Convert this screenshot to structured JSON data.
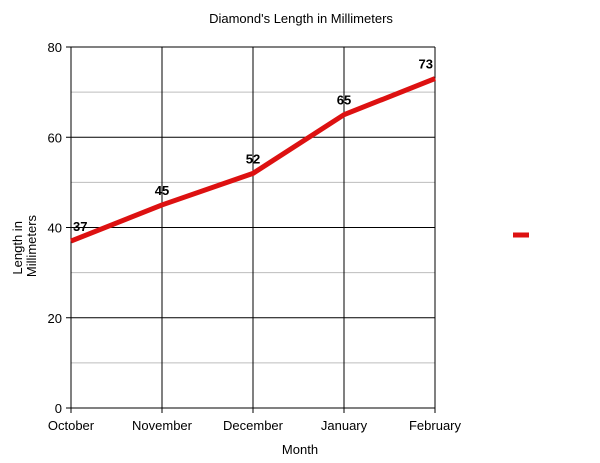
{
  "chart_data": {
    "type": "line",
    "title": "Diamond's Length in Millimeters",
    "xlabel": "Month",
    "ylabel_lines": [
      "Length in",
      "Millimeters"
    ],
    "categories": [
      "October",
      "November",
      "December",
      "January",
      "February"
    ],
    "series": [
      {
        "values": [
          37,
          45,
          52,
          65,
          73
        ],
        "color": "#dd1111"
      }
    ],
    "data_labels": [
      "37",
      "45",
      "52",
      "65",
      "73"
    ],
    "ylim": [
      0,
      80
    ],
    "yticks": [
      0,
      20,
      40,
      60,
      80
    ],
    "ytick_labels": [
      "0",
      "20",
      "40",
      "60",
      "80"
    ],
    "minor_gridlines_y": [
      10,
      30,
      50,
      70
    ],
    "grid": true,
    "legend": {
      "placement": "right",
      "color": "#dd1111"
    }
  }
}
